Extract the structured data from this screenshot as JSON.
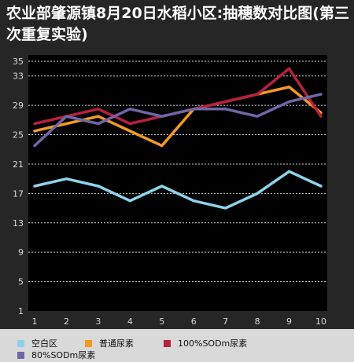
{
  "chart_data": {
    "type": "line",
    "title": "农业部肇源镇8月20日水稻小区:抽穗数对比图(第三次重复实验)",
    "x": [
      1,
      2,
      3,
      4,
      5,
      6,
      7,
      8,
      9,
      10
    ],
    "ylim": [
      1,
      35
    ],
    "yticks": [
      1,
      5,
      9,
      13,
      17,
      21,
      25,
      29,
      33,
      35
    ],
    "grid": true,
    "legend_position": "bottom",
    "series": [
      {
        "name": "空白区",
        "color": "#8dd3ea",
        "values": [
          18,
          19,
          18,
          16,
          18,
          16,
          15,
          17,
          20,
          18
        ]
      },
      {
        "name": "普通尿素",
        "color": "#f39a1e",
        "values": [
          25.5,
          26.5,
          27.5,
          25.5,
          23.5,
          28.5,
          29.5,
          30.5,
          31.5,
          28
        ]
      },
      {
        "name": "100%SODm尿素",
        "color": "#b8203f",
        "values": [
          26.5,
          27.5,
          28.5,
          26.5,
          27.5,
          28.5,
          29.5,
          30.5,
          34,
          27.5
        ]
      },
      {
        "name": "80%SODm尿素",
        "color": "#6e67a8",
        "values": [
          23.5,
          27.5,
          26.5,
          28.5,
          27.5,
          28.5,
          28.5,
          27.5,
          29.5,
          30.5
        ]
      }
    ]
  }
}
